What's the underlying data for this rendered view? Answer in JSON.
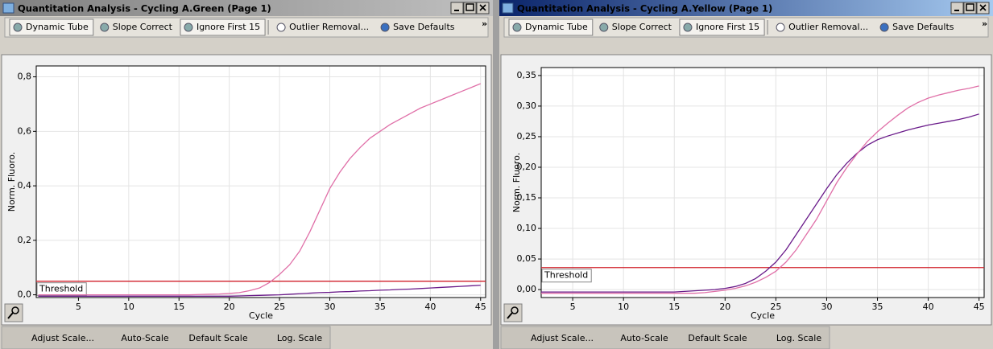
{
  "windows": [
    {
      "title": "Quantitation Analysis - Cycling A.Green (Page 1)",
      "active": false,
      "toolbar": [
        {
          "label": "Dynamic Tube",
          "active": true
        },
        {
          "label": "Slope Correct",
          "active": false
        },
        {
          "label": "Ignore First 15",
          "active": true
        },
        {
          "label": "Outlier Removal...",
          "active": false
        },
        {
          "label": "Save Defaults",
          "active": false
        }
      ],
      "overflow": "»",
      "footer": [
        "Adjust Scale...",
        "Auto-Scale",
        "Default Scale",
        "Log. Scale"
      ],
      "chart": {
        "type": "line",
        "x_label": "Cycle",
        "y_label": "Norm. Fluoro.",
        "x": [
          1,
          2,
          3,
          4,
          5,
          6,
          7,
          8,
          9,
          10,
          11,
          12,
          13,
          14,
          15,
          16,
          17,
          18,
          19,
          20,
          21,
          22,
          23,
          24,
          25,
          26,
          27,
          28,
          29,
          30,
          31,
          32,
          33,
          34,
          35,
          36,
          37,
          38,
          39,
          40,
          41,
          42,
          43,
          44,
          45
        ],
        "xlim": [
          0.8,
          45.5
        ],
        "xticks": [
          5,
          10,
          15,
          20,
          25,
          30,
          35,
          40,
          45
        ],
        "ylim": [
          -0.01,
          0.84
        ],
        "yticks": [
          {
            "value": 0,
            "label": "0,0"
          },
          {
            "value": 0.2,
            "label": "0,2"
          },
          {
            "value": 0.4,
            "label": "0,4"
          },
          {
            "value": 0.6,
            "label": "0,6"
          },
          {
            "value": 0.8,
            "label": "0,8"
          }
        ],
        "grid": true,
        "threshold": {
          "label": "Threshold",
          "value": 0.05,
          "color": "#d0202a"
        },
        "series": [
          {
            "color": "#e070a8",
            "values": [
              0,
              0,
              0,
              0,
              0,
              0,
              0,
              0,
              0,
              0,
              0,
              0,
              0,
              0,
              0,
              0,
              0.001,
              0.002,
              0.003,
              0.005,
              0.008,
              0.015,
              0.025,
              0.045,
              0.075,
              0.11,
              0.16,
              0.23,
              0.31,
              0.39,
              0.45,
              0.5,
              0.54,
              0.575,
              0.6,
              0.625,
              0.645,
              0.665,
              0.685,
              0.7,
              0.715,
              0.73,
              0.745,
              0.76,
              0.775
            ]
          },
          {
            "color": "#6a1b8a",
            "values": [
              -0.005,
              -0.005,
              -0.005,
              -0.005,
              -0.005,
              -0.005,
              -0.005,
              -0.005,
              -0.005,
              -0.005,
              -0.005,
              -0.005,
              -0.005,
              -0.005,
              -0.005,
              -0.005,
              -0.005,
              -0.005,
              -0.005,
              -0.005,
              -0.004,
              -0.003,
              -0.002,
              -0.001,
              0,
              0.002,
              0.004,
              0.006,
              0.008,
              0.009,
              0.011,
              0.012,
              0.014,
              0.015,
              0.017,
              0.018,
              0.02,
              0.021,
              0.023,
              0.025,
              0.027,
              0.029,
              0.031,
              0.033,
              0.035
            ]
          }
        ]
      }
    },
    {
      "title": "Quantitation Analysis - Cycling A.Yellow (Page 1)",
      "active": true,
      "toolbar": [
        {
          "label": "Dynamic Tube",
          "active": true
        },
        {
          "label": "Slope Correct",
          "active": false
        },
        {
          "label": "Ignore First 15",
          "active": true
        },
        {
          "label": "Outlier Removal...",
          "active": false
        },
        {
          "label": "Save Defaults",
          "active": false
        }
      ],
      "overflow": "»",
      "footer": [
        "Adjust Scale...",
        "Auto-Scale",
        "Default Scale",
        "Log. Scale"
      ],
      "chart": {
        "type": "line",
        "x_label": "Cycle",
        "y_label": "Norm. Fluoro.",
        "x": [
          1,
          2,
          3,
          4,
          5,
          6,
          7,
          8,
          9,
          10,
          11,
          12,
          13,
          14,
          15,
          16,
          17,
          18,
          19,
          20,
          21,
          22,
          23,
          24,
          25,
          26,
          27,
          28,
          29,
          30,
          31,
          32,
          33,
          34,
          35,
          36,
          37,
          38,
          39,
          40,
          41,
          42,
          43,
          44,
          45
        ],
        "xlim": [
          1.9,
          45.5
        ],
        "xticks": [
          5,
          10,
          15,
          20,
          25,
          30,
          35,
          40,
          45
        ],
        "ylim": [
          -0.013,
          0.363
        ],
        "yticks": [
          {
            "value": 0,
            "label": "0,00"
          },
          {
            "value": 0.05,
            "label": "0,05"
          },
          {
            "value": 0.1,
            "label": "0,10"
          },
          {
            "value": 0.15,
            "label": "0,15"
          },
          {
            "value": 0.2,
            "label": "0,20"
          },
          {
            "value": 0.25,
            "label": "0,25"
          },
          {
            "value": 0.3,
            "label": "0,30"
          },
          {
            "value": 0.35,
            "label": "0,35"
          }
        ],
        "grid": true,
        "threshold": {
          "label": "Threshold",
          "value": 0.036,
          "color": "#d0202a"
        },
        "series": [
          {
            "color": "#6a1b8a",
            "values": [
              -0.004,
              -0.004,
              -0.004,
              -0.004,
              -0.004,
              -0.004,
              -0.004,
              -0.004,
              -0.004,
              -0.004,
              -0.004,
              -0.004,
              -0.004,
              -0.004,
              -0.004,
              -0.003,
              -0.002,
              -0.001,
              0,
              0.002,
              0.005,
              0.01,
              0.018,
              0.03,
              0.045,
              0.065,
              0.09,
              0.115,
              0.14,
              0.165,
              0.188,
              0.207,
              0.223,
              0.236,
              0.245,
              0.251,
              0.256,
              0.261,
              0.265,
              0.269,
              0.272,
              0.275,
              0.278,
              0.282,
              0.287
            ]
          },
          {
            "color": "#e070a8",
            "values": [
              -0.006,
              -0.006,
              -0.006,
              -0.006,
              -0.006,
              -0.006,
              -0.006,
              -0.006,
              -0.006,
              -0.006,
              -0.006,
              -0.006,
              -0.006,
              -0.006,
              -0.006,
              -0.006,
              -0.006,
              -0.005,
              -0.003,
              -0.001,
              0.002,
              0.006,
              0.012,
              0.02,
              0.03,
              0.045,
              0.065,
              0.09,
              0.115,
              0.145,
              0.175,
              0.2,
              0.222,
              0.242,
              0.258,
              0.272,
              0.285,
              0.297,
              0.306,
              0.313,
              0.318,
              0.322,
              0.326,
              0.329,
              0.333
            ]
          }
        ]
      }
    }
  ]
}
